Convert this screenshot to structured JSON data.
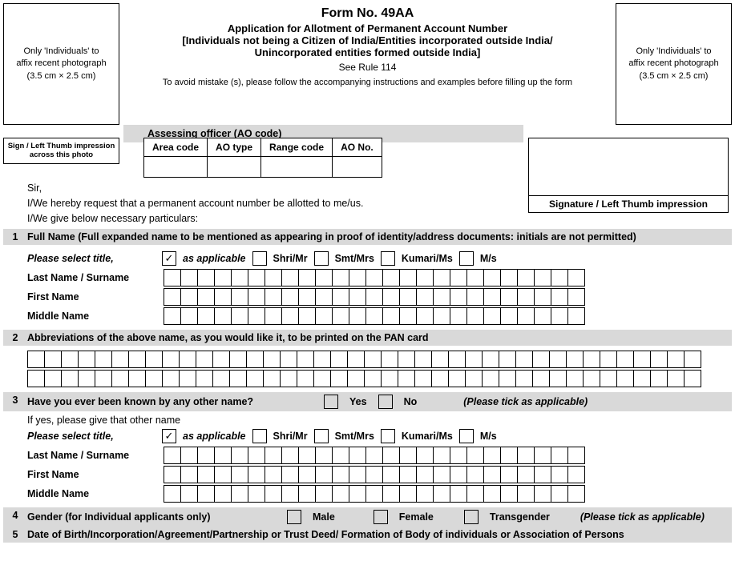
{
  "header": {
    "form_no": "Form No. 49AA",
    "subtitle1": "Application for Allotment of Permanent Account Number",
    "subtitle2": "[Individuals not being a Citizen of India/Entities incorporated outside India/",
    "subtitle3": "Unincorporated entities formed outside India]",
    "see_rule": "See Rule 114",
    "avoid_note": "To avoid mistake (s), please follow the accompanying instructions and examples before filling up the form",
    "photo_text1": "Only 'Individuals' to",
    "photo_text2": "affix recent photograph",
    "photo_text3": "(3.5 cm × 2.5 cm)"
  },
  "ao": {
    "title": "Assessing officer (AO code)",
    "thumb_label": "Sign / Left Thumb impression across this photo",
    "col_area": "Area code",
    "col_type": "AO type",
    "col_range": "Range code",
    "col_no": "AO No.",
    "sig_label": "Signature / Left Thumb impression"
  },
  "intro": {
    "sir": "Sir,",
    "line1": "I/We hereby request that a permanent account number be allotted to me/us.",
    "line2": "I/We give below necessary particulars:"
  },
  "s1": {
    "num": "1",
    "title": "Full Name (Full expanded name to be mentioned as appearing in proof of identity/address documents: initials are not permitted)",
    "select_title": "Please select title,",
    "as_applicable": "as applicable",
    "shri": "Shri/Mr",
    "smt": "Smt/Mrs",
    "kumari": "Kumari/Ms",
    "ms": "M/s",
    "last_name": "Last Name / Surname",
    "first_name": "First Name",
    "middle_name": "Middle Name",
    "checkmark": "✓"
  },
  "s2": {
    "num": "2",
    "title": "Abbreviations of the above name, as you would like it, to be printed on the PAN card"
  },
  "s3": {
    "num": "3",
    "title": "Have you ever been known by any other name?",
    "yes": "Yes",
    "no": "No",
    "hint": "(Please tick as applicable)",
    "if_yes": "If yes, please give that other name"
  },
  "s4": {
    "num": "4",
    "title": "Gender (for Individual applicants only)",
    "male": "Male",
    "female": "Female",
    "trans": "Transgender",
    "hint": "(Please tick as applicable)"
  },
  "s5": {
    "num": "5",
    "title": "Date of Birth/Incorporation/Agreement/Partnership or Trust Deed/ Formation of Body of individuals or Association of Persons"
  },
  "style": {
    "bg_gray": "#d9d9d9",
    "border": "#000000",
    "font_main": 12
  }
}
